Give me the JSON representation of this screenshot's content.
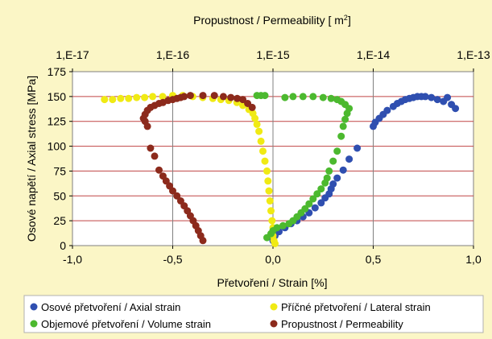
{
  "chart_data": {
    "type": "scatter",
    "title": "",
    "xlabel": "Přetvoření / Strain [%]",
    "ylabel": "Osové napětí / Axial stress [MPa]",
    "x2label_main": "Propustnost / Permeability [ m",
    "x2label_sup": "2",
    "x2label_end": "]",
    "xlim": [
      -1.0,
      1.0
    ],
    "ylim": [
      0,
      175
    ],
    "x2lim": [
      "1,E-17",
      "1,E-13"
    ],
    "x_ticks": [
      "-1,0",
      "-0,5",
      "0,0",
      "0,5",
      "1,0"
    ],
    "y_ticks": [
      "0",
      "25",
      "50",
      "75",
      "100",
      "125",
      "150",
      "175"
    ],
    "x2_ticks": [
      "1,E-17",
      "1,E-16",
      "1,E-15",
      "1,E-14",
      "1,E-13"
    ],
    "grid": "horizontal",
    "legend_position": "bottom",
    "colors": {
      "background": "#fbf6c6",
      "plot": "#ffffff",
      "grid": "#c04545",
      "axial": "#2f4fb0",
      "lateral": "#f0ea14",
      "volume": "#4cb92f",
      "permeability": "#8c2a1c"
    },
    "series": [
      {
        "name": "Osové přetvoření / Axial strain",
        "axis": "strain",
        "x": [
          0.0,
          0.01,
          0.03,
          0.06,
          0.09,
          0.12,
          0.15,
          0.18,
          0.21,
          0.24,
          0.26,
          0.28,
          0.29,
          0.3,
          0.32,
          0.35,
          0.38,
          0.42,
          0.5,
          0.51,
          0.53,
          0.55,
          0.57,
          0.6,
          0.62,
          0.64,
          0.66,
          0.68,
          0.7,
          0.72,
          0.74,
          0.76,
          0.79,
          0.82,
          0.85,
          0.87,
          0.89,
          0.91
        ],
        "y": [
          5,
          10,
          14,
          18,
          22,
          25,
          29,
          33,
          38,
          43,
          48,
          52,
          57,
          62,
          68,
          76,
          87,
          98,
          120,
          124,
          128,
          132,
          136,
          140,
          143,
          145,
          147,
          148,
          149,
          150,
          150,
          150,
          149,
          147,
          145,
          149,
          142,
          138
        ]
      },
      {
        "name": "Příčné přetvoření / Lateral strain",
        "axis": "strain",
        "x": [
          -0.84,
          -0.8,
          -0.76,
          -0.72,
          -0.68,
          -0.64,
          -0.6,
          -0.55,
          -0.5,
          -0.45,
          -0.4,
          -0.35,
          -0.3,
          -0.26,
          -0.22,
          -0.18,
          -0.15,
          -0.12,
          -0.1,
          -0.09,
          -0.08,
          -0.07,
          -0.06,
          -0.05,
          -0.04,
          -0.03,
          -0.025,
          -0.02,
          -0.015,
          -0.01,
          -0.005,
          0.0,
          0.0,
          0.005,
          0.01
        ],
        "y": [
          147,
          147,
          148,
          148,
          149,
          149,
          150,
          150,
          151,
          151,
          150,
          149,
          148,
          147,
          146,
          144,
          141,
          137,
          133,
          128,
          122,
          115,
          105,
          95,
          85,
          75,
          65,
          55,
          45,
          35,
          25,
          18,
          10,
          5,
          2
        ]
      },
      {
        "name": "Objemové přetvoření / Volume strain",
        "axis": "strain",
        "x": [
          -0.03,
          -0.01,
          0.0,
          0.02,
          0.05,
          0.08,
          0.1,
          0.12,
          0.14,
          0.16,
          0.18,
          0.2,
          0.22,
          0.24,
          0.26,
          0.27,
          0.28,
          0.3,
          0.32,
          0.34,
          0.35,
          0.36,
          0.37,
          0.38,
          0.36,
          0.34,
          0.32,
          0.29,
          0.25,
          0.2,
          0.15,
          0.1,
          0.06,
          -0.04,
          -0.06,
          -0.08
        ],
        "y": [
          8,
          12,
          15,
          18,
          20,
          22,
          25,
          29,
          33,
          37,
          42,
          47,
          52,
          57,
          63,
          68,
          75,
          85,
          95,
          110,
          120,
          127,
          133,
          138,
          142,
          145,
          147,
          148,
          149,
          150,
          150,
          150,
          149,
          151,
          151,
          151
        ]
      },
      {
        "name": "Propustnost / Permeability",
        "axis": "permeability",
        "x": [
          "2.0e-16",
          "1.9e-16",
          "1.8e-16",
          "1.7e-16",
          "1.6e-16",
          "1.5e-16",
          "1.4e-16",
          "1.3e-16",
          "1.2e-16",
          "1.1e-16",
          "1.0e-16",
          "0.93e-16",
          "0.86e-16",
          "0.8e-16",
          "0.73e-16",
          "0.66e-16",
          "0.6e-16",
          "0.56e-16",
          "0.53e-16",
          "0.51e-16",
          "0.53e-16",
          "0.56e-16",
          "0.6e-16",
          "0.66e-16",
          "0.73e-16",
          "0.8e-16",
          "0.9e-16",
          "1.0e-16",
          "1.1e-16",
          "1.2e-16",
          "1.3e-16",
          "1.5e-16",
          "2.0e-16",
          "2.6e-16",
          "3.2e-16",
          "3.8e-16",
          "4.4e-16",
          "5.0e-16",
          "5.6e-16",
          "6.2e-16"
        ],
        "y": [
          5,
          10,
          15,
          20,
          25,
          30,
          35,
          40,
          45,
          50,
          55,
          60,
          65,
          70,
          76,
          90,
          98,
          120,
          125,
          128,
          132,
          136,
          139,
          141,
          143,
          144,
          146,
          147,
          148,
          149,
          150,
          151,
          151,
          151,
          150,
          149,
          148,
          147,
          143,
          139
        ]
      }
    ]
  }
}
